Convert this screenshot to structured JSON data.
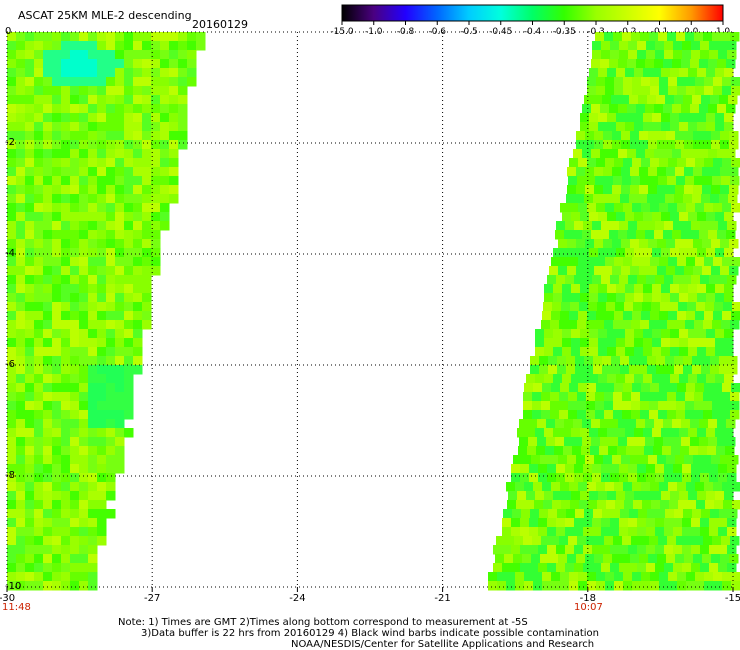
{
  "header": {
    "title": "ASCAT 25KM MLE-2 descending",
    "date": "20160129"
  },
  "colorbar": {
    "labels": [
      "-15.0",
      "-1.0",
      "-0.8",
      "-0.6",
      "-0.5",
      "-0.45",
      "-0.4",
      "-0.35",
      "-0.3",
      "-0.2",
      "-0.1",
      "0.0",
      "1.0"
    ],
    "colors": [
      "#000000",
      "#4a0080",
      "#2200ff",
      "#0066ff",
      "#00ccff",
      "#00ffdd",
      "#00ff66",
      "#33ff00",
      "#99ff00",
      "#ccff00",
      "#ffff00",
      "#ff9900",
      "#ff0000"
    ]
  },
  "axes": {
    "x_ticks": [
      "-30",
      "-27",
      "-24",
      "-21",
      "-18",
      "-15"
    ],
    "y_ticks": [
      "0",
      "-2",
      "-4",
      "-6",
      "-8",
      "-10"
    ],
    "x_range": [
      -30,
      -15
    ],
    "y_range": [
      -10,
      0
    ]
  },
  "times": {
    "left": "11:48",
    "right": "10:07"
  },
  "notes": {
    "line1": "Note: 1) Times are GMT 2)Times along bottom correspond to measurement at -5S",
    "line2": "3)Data buffer is 22 hrs from 20160129 4) Black wind barbs indicate possible contamination",
    "line3": "NOAA/NESDIS/Center for Satellite Applications and Research"
  }
}
